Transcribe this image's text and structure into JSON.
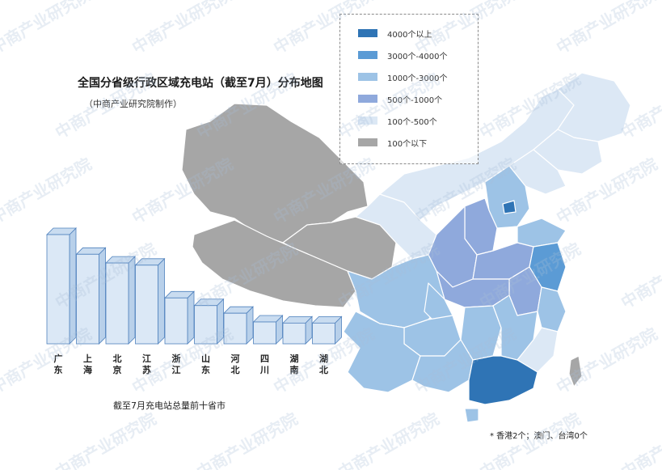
{
  "header": {
    "title": "全国分省级行政区域充电站（截至7月）分布地图",
    "subtitle": "（中商产业研究院制作）"
  },
  "legend": {
    "items": [
      {
        "label": "4000个以上",
        "color": "#2f74b5"
      },
      {
        "label": "3000个-4000个",
        "color": "#5b9bd5"
      },
      {
        "label": "1000个-3000个",
        "color": "#9dc3e6"
      },
      {
        "label": "500个-1000个",
        "color": "#8fa9dc"
      },
      {
        "label": "100个-500个",
        "color": "#dce8f5"
      },
      {
        "label": "100个以下",
        "color": "#a6a6a6"
      }
    ]
  },
  "chart_data": {
    "type": "bar",
    "title": "截至7月充电站总量前十省市",
    "categories": [
      "广东",
      "上海",
      "北京",
      "江苏",
      "浙江",
      "山东",
      "河北",
      "四川",
      "湖南",
      "湖北"
    ],
    "values": [
      100,
      82,
      74,
      72,
      42,
      35,
      28,
      20,
      19,
      19
    ],
    "value_scale": "relative",
    "bar_color": "#dbe8f6",
    "bar_border": "#4f81bd"
  },
  "footnote": "* 香港2个；澳门、台湾0个",
  "watermark": "中商产业研究院"
}
